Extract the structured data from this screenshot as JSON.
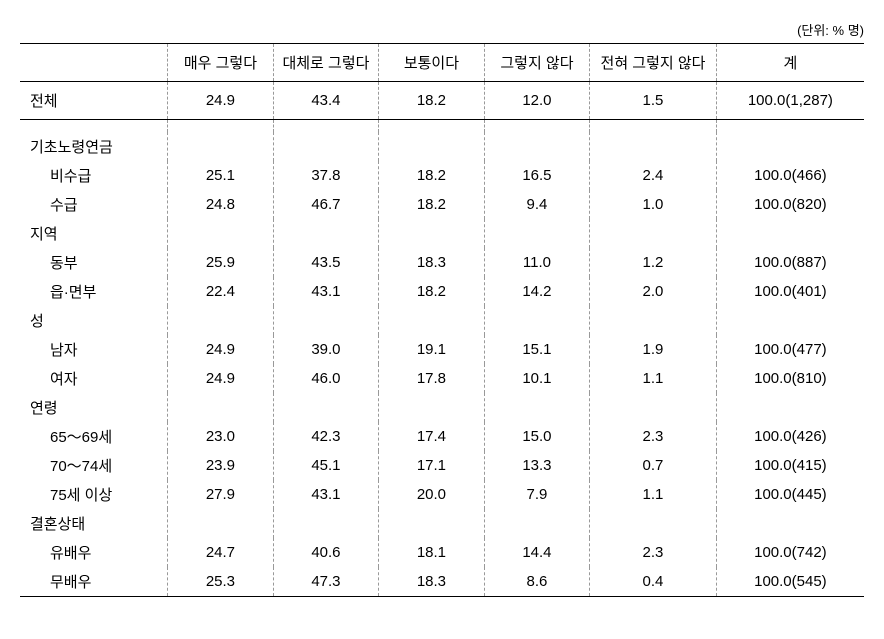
{
  "unit_label": "(단위: % 명)",
  "headers": {
    "blank": "",
    "c1": "매우 그렇다",
    "c2": "대체로 그렇다",
    "c3": "보통이다",
    "c4": "그렇지 않다",
    "c5": "전혀 그렇지 않다",
    "c6": "계"
  },
  "total": {
    "label": "전체",
    "c1": "24.9",
    "c2": "43.4",
    "c3": "18.2",
    "c4": "12.0",
    "c5": "1.5",
    "c6": "100.0(1,287)"
  },
  "groups": [
    {
      "label": "기초노령연금",
      "rows": [
        {
          "label": "비수급",
          "c1": "25.1",
          "c2": "37.8",
          "c3": "18.2",
          "c4": "16.5",
          "c5": "2.4",
          "c6": "100.0(466)"
        },
        {
          "label": "수급",
          "c1": "24.8",
          "c2": "46.7",
          "c3": "18.2",
          "c4": "9.4",
          "c5": "1.0",
          "c6": "100.0(820)"
        }
      ]
    },
    {
      "label": "지역",
      "rows": [
        {
          "label": "동부",
          "c1": "25.9",
          "c2": "43.5",
          "c3": "18.3",
          "c4": "11.0",
          "c5": "1.2",
          "c6": "100.0(887)"
        },
        {
          "label": "읍·면부",
          "c1": "22.4",
          "c2": "43.1",
          "c3": "18.2",
          "c4": "14.2",
          "c5": "2.0",
          "c6": "100.0(401)"
        }
      ]
    },
    {
      "label": "성",
      "rows": [
        {
          "label": "남자",
          "c1": "24.9",
          "c2": "39.0",
          "c3": "19.1",
          "c4": "15.1",
          "c5": "1.9",
          "c6": "100.0(477)"
        },
        {
          "label": "여자",
          "c1": "24.9",
          "c2": "46.0",
          "c3": "17.8",
          "c4": "10.1",
          "c5": "1.1",
          "c6": "100.0(810)"
        }
      ]
    },
    {
      "label": "연령",
      "rows": [
        {
          "label": "65～69세",
          "c1": "23.0",
          "c2": "42.3",
          "c3": "17.4",
          "c4": "15.0",
          "c5": "2.3",
          "c6": "100.0(426)"
        },
        {
          "label": "70～74세",
          "c1": "23.9",
          "c2": "45.1",
          "c3": "17.1",
          "c4": "13.3",
          "c5": "0.7",
          "c6": "100.0(415)"
        },
        {
          "label": "75세 이상",
          "c1": "27.9",
          "c2": "43.1",
          "c3": "20.0",
          "c4": "7.9",
          "c5": "1.1",
          "c6": "100.0(445)"
        }
      ]
    },
    {
      "label": "결혼상태",
      "rows": [
        {
          "label": "유배우",
          "c1": "24.7",
          "c2": "40.6",
          "c3": "18.1",
          "c4": "14.4",
          "c5": "2.3",
          "c6": "100.0(742)"
        },
        {
          "label": "무배우",
          "c1": "25.3",
          "c2": "47.3",
          "c3": "18.3",
          "c4": "8.6",
          "c5": "0.4",
          "c6": "100.0(545)"
        }
      ]
    }
  ]
}
